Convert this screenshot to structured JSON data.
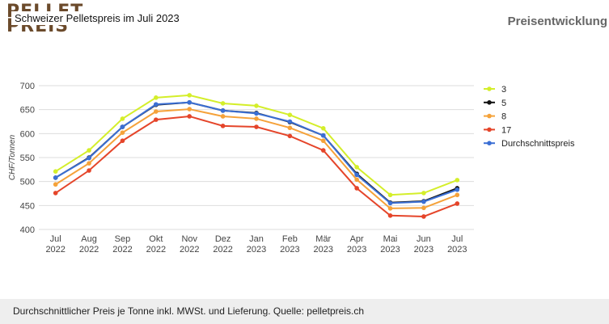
{
  "logo": [
    "PELLET",
    "PREIS"
  ],
  "header": {
    "caption": "Schweizer Pelletspreis im Juli 2023",
    "section": "Preisentwicklung"
  },
  "footer": "Durchschnittlicher Preis je Tonne inkl. MWSt. und Lieferung. Quelle: pelletpreis.ch",
  "chart_data": {
    "type": "line",
    "y_label": "CHF/Tonnen",
    "categories": [
      "Jul 2022",
      "Aug 2022",
      "Sep 2022",
      "Okt 2022",
      "Nov 2022",
      "Dez 2022",
      "Jan 2023",
      "Feb 2023",
      "Mär 2023",
      "Apr 2023",
      "Mai 2023",
      "Jun 2023",
      "Jul 2023"
    ],
    "series": [
      {
        "name": "3",
        "color": "#d4ee2a",
        "values": [
          521,
          565,
          631,
          675,
          680,
          663,
          658,
          639,
          611,
          530,
          472,
          476,
          503
        ]
      },
      {
        "name": "5",
        "color": "#111111",
        "values": [
          508,
          550,
          614,
          660,
          665,
          648,
          643,
          624,
          596,
          516,
          456,
          459,
          486
        ]
      },
      {
        "name": "8",
        "color": "#f5a23a",
        "values": [
          494,
          538,
          602,
          646,
          651,
          636,
          631,
          612,
          585,
          504,
          444,
          445,
          472
        ]
      },
      {
        "name": "17",
        "color": "#e5452a",
        "values": [
          476,
          523,
          585,
          629,
          636,
          616,
          614,
          595,
          565,
          486,
          429,
          427,
          454
        ]
      },
      {
        "name": "Durchschnittspreis",
        "color": "#3b6fd4",
        "values": [
          508,
          549,
          614,
          661,
          665,
          648,
          642,
          625,
          596,
          514,
          455,
          458,
          483
        ]
      }
    ],
    "ylim": [
      400,
      700
    ],
    "yticks": [
      400,
      450,
      500,
      550,
      600,
      650,
      700
    ],
    "grid": true,
    "legend": "right"
  }
}
